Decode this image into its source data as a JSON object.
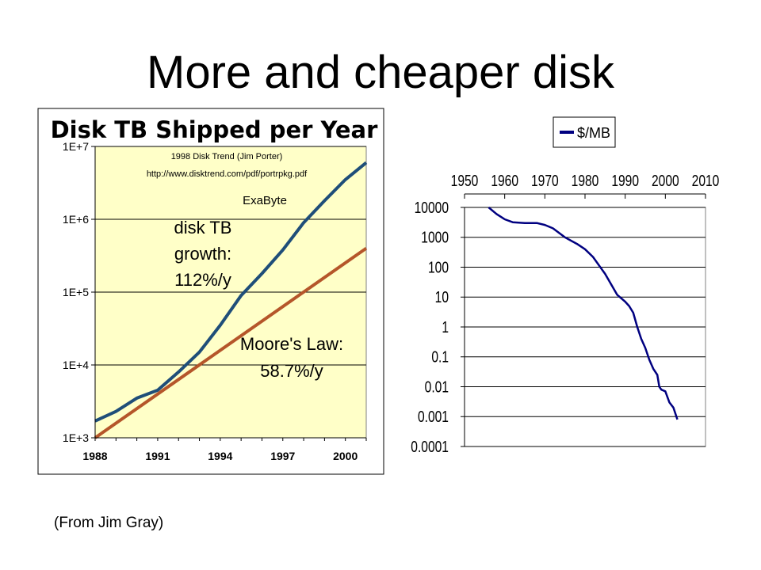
{
  "slide": {
    "title": "More and cheaper disk",
    "caption": "(From Jim Gray)"
  },
  "colors": {
    "plot_background": "#ffffc8",
    "disk_line": "#1f4e79",
    "moore_line": "#b5562a",
    "price_line": "#000080"
  },
  "chart_data": [
    {
      "type": "line",
      "title": "Disk TB Shipped per Year",
      "y_scale": "log",
      "ylim": [
        1000,
        10000000
      ],
      "xlim": [
        1988,
        2001
      ],
      "x_ticks": [
        "1988",
        "1991",
        "1994",
        "1997",
        "2000"
      ],
      "y_ticks": [
        "1E+3",
        "1E+4",
        "1E+5",
        "1E+6",
        "1E+7"
      ],
      "source_note": [
        "1998 Disk Trend (Jim Porter)",
        "http://www.disktrend.com/pdf/portrpkg.pdf"
      ],
      "annotations": {
        "exabyte": "ExaByte",
        "disk_growth": [
          "disk TB",
          "growth:",
          "112%/y"
        ],
        "moore": [
          "Moore's Law:",
          "58.7%/y"
        ]
      },
      "series": [
        {
          "name": "disk TB",
          "x": [
            1988,
            1989,
            1990,
            1991,
            1992,
            1993,
            1994,
            1995,
            1996,
            1997,
            1998,
            1999,
            2000,
            2001
          ],
          "y": [
            1700,
            2300,
            3500,
            4500,
            8000,
            15000,
            35000,
            90000,
            180000,
            380000,
            900000,
            1800000,
            3500000,
            6000000
          ]
        },
        {
          "name": "Moore's Law",
          "x": [
            1988,
            2001
          ],
          "y": [
            1000,
            400000
          ]
        }
      ]
    },
    {
      "type": "line",
      "y_scale": "log",
      "ylim": [
        0.0001,
        10000
      ],
      "xlim": [
        1950,
        2010
      ],
      "x_ticks": [
        "1950",
        "1960",
        "1970",
        "1980",
        "1990",
        "2000",
        "2010"
      ],
      "y_ticks": [
        "10000",
        "1000",
        "100",
        "10",
        "1",
        "0.1",
        "0.01",
        "0.001",
        "0.0001"
      ],
      "legend_position": "top-right",
      "series": [
        {
          "name": "$/MB",
          "x": [
            1956,
            1958,
            1960,
            1962,
            1965,
            1968,
            1970,
            1972,
            1975,
            1978,
            1980,
            1982,
            1985,
            1988,
            1990,
            1991,
            1992,
            1993,
            1994,
            1995,
            1996,
            1997,
            1998,
            1998.5,
            1999,
            2000,
            2001,
            2002,
            2003
          ],
          "y": [
            10000,
            6000,
            4000,
            3200,
            3000,
            3000,
            2600,
            2000,
            1000,
            600,
            400,
            220,
            60,
            12,
            7,
            5,
            3,
            1,
            0.4,
            0.2,
            0.08,
            0.04,
            0.025,
            0.01,
            0.008,
            0.007,
            0.003,
            0.002,
            0.0008
          ]
        }
      ]
    }
  ]
}
